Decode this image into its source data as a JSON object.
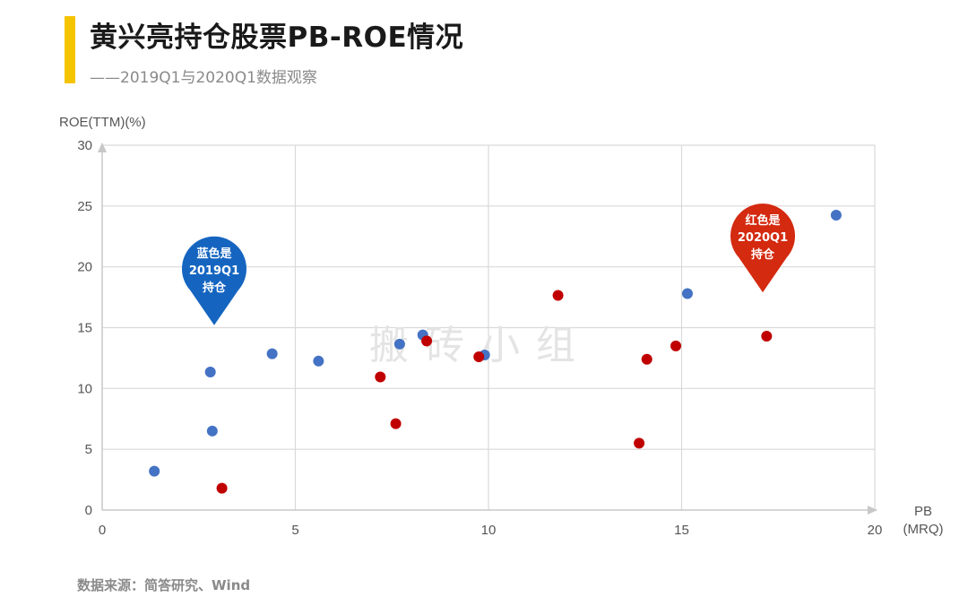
{
  "header": {
    "title": "黄兴亮持仓股票PB-ROE情况",
    "subtitle": "——2019Q1与2020Q1数据观察"
  },
  "footer": {
    "source": "数据来源：简答研究、Wind"
  },
  "watermark": "搬砖小组",
  "chart_data": {
    "type": "scatter",
    "title": "黄兴亮持仓股票PB-ROE情况",
    "ylabel": "ROE(TTM)(%)",
    "xlabel": "PB (MRQ)",
    "xlabel_lines": [
      "PB",
      "(MRQ)"
    ],
    "xlim": [
      0,
      20
    ],
    "ylim": [
      0,
      30
    ],
    "xticks": [
      0,
      5,
      10,
      15,
      20
    ],
    "yticks": [
      0,
      5,
      10,
      15,
      20,
      25,
      30
    ],
    "grid": true,
    "series": [
      {
        "key": "2019q1",
        "color": "#4472c4",
        "callout_lines": [
          "蓝色是",
          "2019Q1",
          "持仓"
        ],
        "callout_color": "#1565c0",
        "callout_anchor": [
          2.9,
          15.2
        ],
        "points": [
          {
            "x": 1.35,
            "y": 3.2
          },
          {
            "x": 2.8,
            "y": 11.35
          },
          {
            "x": 2.85,
            "y": 6.5
          },
          {
            "x": 4.4,
            "y": 12.85
          },
          {
            "x": 5.6,
            "y": 12.25
          },
          {
            "x": 7.7,
            "y": 13.65
          },
          {
            "x": 8.3,
            "y": 14.4
          },
          {
            "x": 9.9,
            "y": 12.75
          },
          {
            "x": 15.15,
            "y": 17.8
          },
          {
            "x": 19.0,
            "y": 24.25
          }
        ]
      },
      {
        "key": "2020q1",
        "color": "#c00000",
        "callout_lines": [
          "红色是",
          "2020Q1",
          "持仓"
        ],
        "callout_color": "#d42a10",
        "callout_anchor": [
          17.1,
          17.9
        ],
        "points": [
          {
            "x": 3.1,
            "y": 1.8
          },
          {
            "x": 7.2,
            "y": 10.95
          },
          {
            "x": 7.6,
            "y": 7.1
          },
          {
            "x": 8.4,
            "y": 13.9
          },
          {
            "x": 9.75,
            "y": 12.6
          },
          {
            "x": 11.8,
            "y": 17.65
          },
          {
            "x": 13.9,
            "y": 5.5
          },
          {
            "x": 14.1,
            "y": 12.4
          },
          {
            "x": 14.85,
            "y": 13.5
          },
          {
            "x": 17.2,
            "y": 14.3
          }
        ]
      }
    ]
  }
}
